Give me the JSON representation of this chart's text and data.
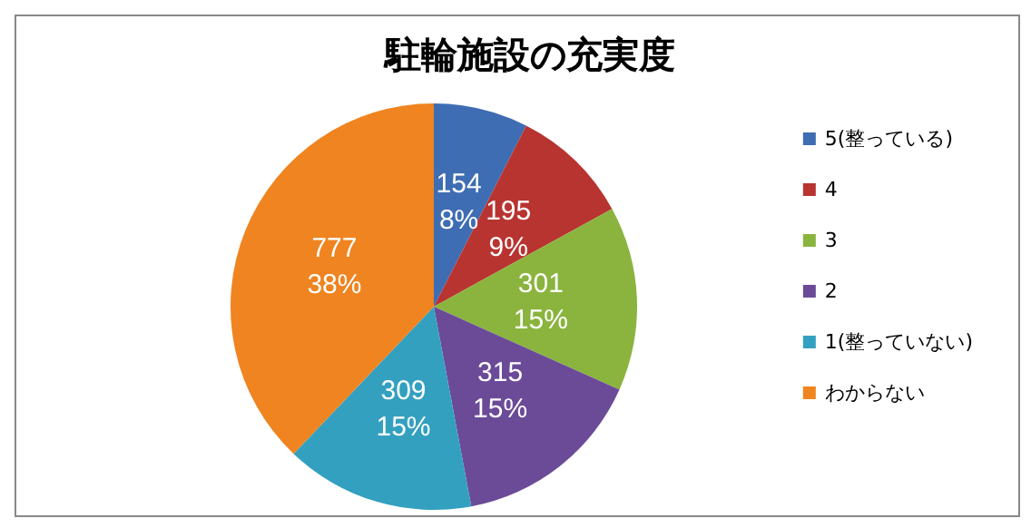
{
  "chart_data": {
    "type": "pie",
    "title": "駐輪施設の充実度",
    "categories": [
      "5(整っている)",
      "4",
      "3",
      "2",
      "1(整っていない)",
      "わからない"
    ],
    "values": [
      154,
      195,
      301,
      315,
      309,
      777
    ],
    "colors": [
      "#3e6db3",
      "#b83431",
      "#8ab43e",
      "#6b4a98",
      "#33a0c0",
      "#ef8420"
    ],
    "value_labels": [
      "154\n8%",
      "195\n9%",
      "301\n15%",
      "315\n15%",
      "309\n15%",
      "777\n38%"
    ],
    "legend": "right"
  }
}
